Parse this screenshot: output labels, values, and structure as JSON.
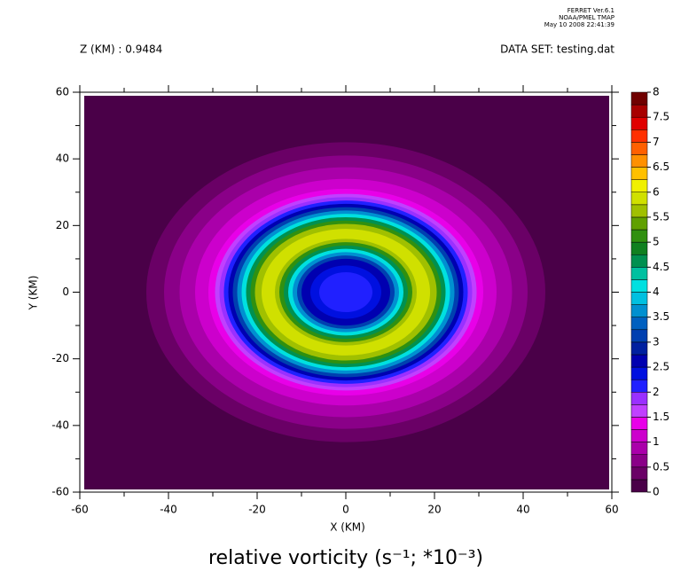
{
  "header": {
    "program": "FERRET Ver.6.1",
    "institution": "NOAA/PMEL TMAP",
    "date": "May 10 2008 22:41:39",
    "z_label": "Z (KM) : 0.9484",
    "dataset": "DATA SET: testing.dat"
  },
  "chart_data": {
    "type": "contour",
    "title": "relative vorticity (s⁻¹; *10⁻³)",
    "xlabel": "X (KM)",
    "ylabel": "Y (KM)",
    "xlim": [
      -60,
      60
    ],
    "ylim": [
      -60,
      60
    ],
    "xticks": [
      -60,
      -40,
      -20,
      0,
      20,
      40,
      60
    ],
    "yticks": [
      -60,
      -40,
      -20,
      0,
      20,
      40,
      60
    ],
    "xminorticks": [
      -50,
      -30,
      -10,
      10,
      30,
      50
    ],
    "yminorticks": [
      -50,
      -30,
      -10,
      10,
      30,
      50
    ],
    "levels": [
      0,
      0.25,
      0.5,
      0.75,
      1,
      1.25,
      1.5,
      1.75,
      2,
      2.25,
      2.5,
      2.75,
      3,
      3.25,
      3.5,
      3.75,
      4,
      4.25,
      4.5,
      4.75,
      5,
      5.25,
      5.5,
      5.75,
      6,
      6.25,
      6.5,
      6.75,
      7,
      7.25,
      7.5,
      7.75,
      8
    ],
    "level_ticks": [
      0,
      0.5,
      1,
      1.5,
      2,
      2.5,
      3,
      3.5,
      4,
      4.5,
      5,
      5.5,
      6,
      6.5,
      7,
      7.5,
      8
    ],
    "colors": [
      "#4a0048",
      "#6a0066",
      "#8a0088",
      "#aa00aa",
      "#cc00cc",
      "#e800e8",
      "#c040ff",
      "#9a30ff",
      "#2020ff",
      "#0010e0",
      "#0000b0",
      "#0020a0",
      "#0040b0",
      "#0060c0",
      "#0090d0",
      "#00c0e0",
      "#00e0e0",
      "#00c0a0",
      "#009050",
      "#108020",
      "#309010",
      "#60a000",
      "#a0c000",
      "#d0e000",
      "#f0f000",
      "#ffc000",
      "#ff9000",
      "#ff6000",
      "#ff3000",
      "#e00000",
      "#a80000",
      "#700000"
    ],
    "contours": {
      "radius": [
        45,
        41,
        37.5,
        34,
        31,
        29.5,
        28.5,
        27.5,
        26.5,
        25.5,
        24.5,
        23.5,
        22.5,
        21.5,
        20.5,
        19,
        16,
        15,
        14,
        13,
        12,
        11,
        10,
        8,
        6
      ],
      "values": [
        0.25,
        0.5,
        0.75,
        1,
        1.25,
        1.5,
        1.75,
        2,
        2.5,
        3,
        3.5,
        4,
        4.5,
        5,
        5.5,
        5.75,
        5.5,
        5,
        4.5,
        4,
        3.5,
        3,
        2.5,
        2.25,
        2
      ]
    }
  }
}
